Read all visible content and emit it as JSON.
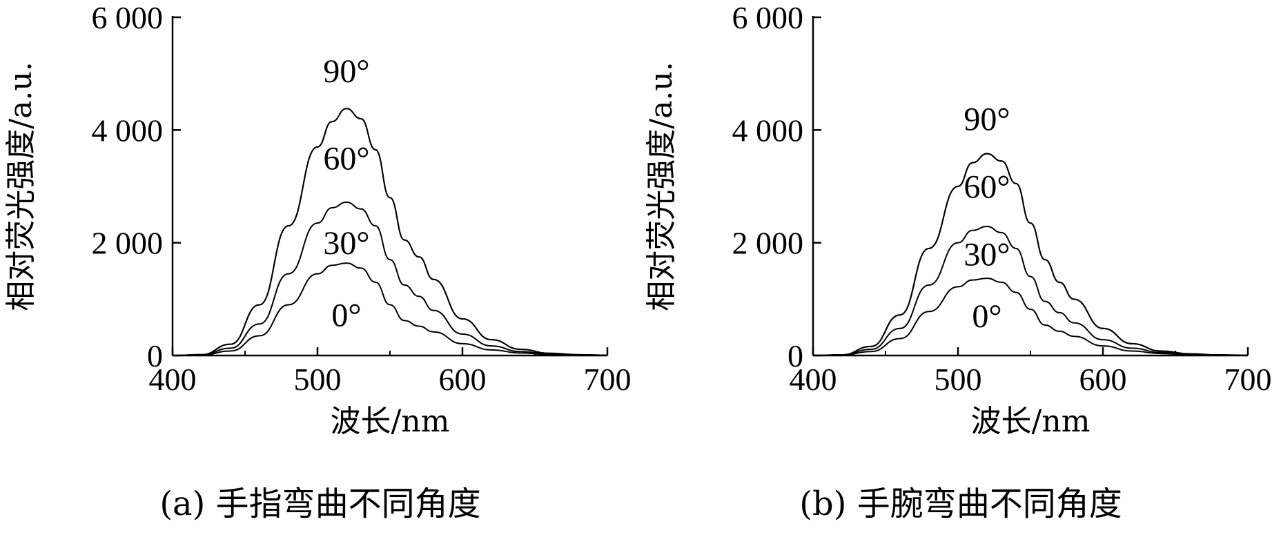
{
  "chart_data": [
    {
      "type": "line",
      "caption": "(a) 手指弯曲不同角度",
      "xlabel": "波长/nm",
      "ylabel": "相对荧光强度/a.u.",
      "xlim": [
        400,
        700
      ],
      "ylim": [
        0,
        6000
      ],
      "xticks": [
        400,
        500,
        600,
        700
      ],
      "xtick_labels": [
        "400",
        "500",
        "600",
        "700"
      ],
      "yticks": [
        0,
        2000,
        4000,
        6000
      ],
      "ytick_labels": [
        "0",
        "2 000",
        "4 000",
        "6 000"
      ],
      "x": [
        400,
        420,
        440,
        460,
        480,
        500,
        510,
        520,
        530,
        540,
        550,
        560,
        570,
        580,
        600,
        620,
        640,
        660,
        680,
        700
      ],
      "series": [
        {
          "name": "0°",
          "values": [
            0,
            8,
            80,
            350,
            900,
            1450,
            1600,
            1640,
            1550,
            1300,
            900,
            620,
            520,
            420,
            210,
            100,
            45,
            18,
            8,
            3
          ]
        },
        {
          "name": "30°",
          "values": [
            0,
            12,
            130,
            560,
            1450,
            2350,
            2620,
            2720,
            2600,
            2300,
            1700,
            1250,
            1050,
            800,
            380,
            170,
            70,
            28,
            10,
            4
          ]
        },
        {
          "name": "60°",
          "values": [
            0,
            15,
            200,
            900,
            2300,
            3700,
            4150,
            4380,
            4200,
            3650,
            2800,
            2050,
            1750,
            1350,
            650,
            280,
            110,
            40,
            14,
            5
          ]
        },
        {
          "name": "90°",
          "values": [
            0,
            15,
            200,
            900,
            2300,
            3700,
            4150,
            4380,
            4200,
            3650,
            2800,
            2050,
            1750,
            1350,
            650,
            280,
            110,
            40,
            14,
            5
          ]
        }
      ],
      "label_anchors": {
        "0°": [
          520,
          520
        ],
        "30°": [
          520,
          1800
        ],
        "60°": [
          520,
          3300
        ],
        "90°": [
          520,
          4850
        ]
      }
    },
    {
      "type": "line",
      "caption": "(b) 手腕弯曲不同角度",
      "xlabel": "波长/nm",
      "ylabel": "相对荧光强度/a.u.",
      "xlim": [
        400,
        700
      ],
      "ylim": [
        0,
        6000
      ],
      "xticks": [
        400,
        500,
        600,
        700
      ],
      "xtick_labels": [
        "400",
        "500",
        "600",
        "700"
      ],
      "yticks": [
        0,
        2000,
        4000,
        6000
      ],
      "ytick_labels": [
        "0",
        "2 000",
        "4 000",
        "6 000"
      ],
      "x": [
        400,
        420,
        440,
        460,
        480,
        500,
        510,
        520,
        530,
        540,
        550,
        560,
        570,
        580,
        600,
        620,
        640,
        660,
        680,
        700
      ],
      "series": [
        {
          "name": "0°",
          "values": [
            0,
            8,
            70,
            300,
            780,
            1220,
            1340,
            1370,
            1300,
            1120,
            820,
            540,
            430,
            340,
            170,
            80,
            35,
            14,
            6,
            2
          ]
        },
        {
          "name": "30°",
          "values": [
            0,
            10,
            110,
            480,
            1250,
            2000,
            2220,
            2290,
            2180,
            1900,
            1400,
            960,
            760,
            580,
            280,
            130,
            55,
            20,
            8,
            3
          ]
        },
        {
          "name": "60°",
          "values": [
            0,
            12,
            160,
            720,
            1900,
            3000,
            3420,
            3580,
            3450,
            3050,
            2350,
            1700,
            1300,
            1000,
            480,
            210,
            80,
            30,
            10,
            4
          ]
        },
        {
          "name": "90°",
          "values": [
            0,
            12,
            160,
            720,
            1900,
            3000,
            3420,
            3580,
            3450,
            3050,
            2350,
            1700,
            1300,
            1000,
            480,
            210,
            80,
            30,
            10,
            4
          ]
        }
      ],
      "label_anchors": {
        "0°": [
          520,
          500
        ],
        "30°": [
          520,
          1600
        ],
        "60°": [
          520,
          2800
        ],
        "90°": [
          520,
          4000
        ]
      }
    }
  ]
}
